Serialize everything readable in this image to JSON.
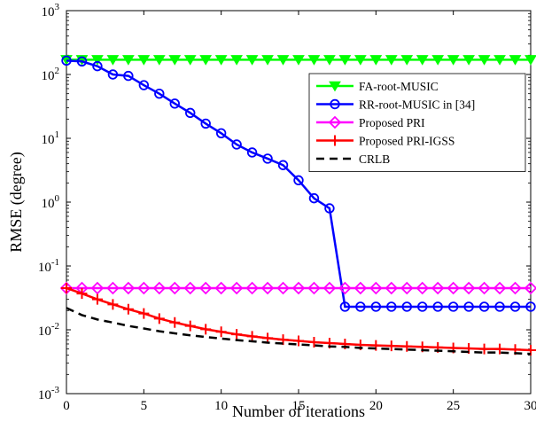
{
  "chart_data": {
    "type": "line",
    "xlabel": "Number of iterations",
    "ylabel": "RMSE (degree)",
    "xlim": [
      0,
      30
    ],
    "ylim": [
      0.001,
      1000
    ],
    "yscale": "log",
    "grid": false,
    "legend_position": "top-right",
    "x_ticks": [
      "0",
      "5",
      "10",
      "15",
      "20",
      "25",
      "30"
    ],
    "y_ticks": [
      {
        "value": 0.001,
        "base": "10",
        "exp": "-3"
      },
      {
        "value": 0.01,
        "base": "10",
        "exp": "-2"
      },
      {
        "value": 0.1,
        "base": "10",
        "exp": "-1"
      },
      {
        "value": 1,
        "base": "10",
        "exp": "0"
      },
      {
        "value": 10,
        "base": "10",
        "exp": "1"
      },
      {
        "value": 100,
        "base": "10",
        "exp": "2"
      },
      {
        "value": 1000,
        "base": "10",
        "exp": "3"
      }
    ],
    "series": [
      {
        "name": "FA-root-MUSIC",
        "color": "#00ff00",
        "marker": "triangle-down",
        "line_style": "solid",
        "x": [
          0,
          1,
          2,
          3,
          4,
          5,
          6,
          7,
          8,
          9,
          10,
          11,
          12,
          13,
          14,
          15,
          16,
          17,
          18,
          19,
          20,
          21,
          22,
          23,
          24,
          25,
          26,
          27,
          28,
          29,
          30
        ],
        "values": [
          170,
          170,
          170,
          170,
          170,
          170,
          170,
          170,
          170,
          170,
          170,
          170,
          170,
          170,
          170,
          170,
          170,
          170,
          170,
          170,
          170,
          170,
          170,
          170,
          170,
          170,
          170,
          170,
          170,
          170,
          170
        ]
      },
      {
        "name": "RR-root-MUSIC in [34]",
        "color": "#0000ff",
        "marker": "circle",
        "line_style": "solid",
        "x": [
          0,
          1,
          2,
          3,
          4,
          5,
          6,
          7,
          8,
          9,
          10,
          11,
          12,
          13,
          14,
          15,
          16,
          17,
          18,
          19,
          20,
          21,
          22,
          23,
          24,
          25,
          26,
          27,
          28,
          29,
          30
        ],
        "values": [
          165,
          160,
          135,
          100,
          95,
          68,
          50,
          35,
          25,
          17,
          12,
          8,
          6,
          4.8,
          3.8,
          2.2,
          1.15,
          0.8,
          0.023,
          0.023,
          0.023,
          0.023,
          0.023,
          0.023,
          0.023,
          0.023,
          0.023,
          0.023,
          0.023,
          0.023,
          0.023
        ]
      },
      {
        "name": "Proposed PRI",
        "color": "#ff00ff",
        "marker": "diamond",
        "line_style": "solid",
        "x": [
          0,
          1,
          2,
          3,
          4,
          5,
          6,
          7,
          8,
          9,
          10,
          11,
          12,
          13,
          14,
          15,
          16,
          17,
          18,
          19,
          20,
          21,
          22,
          23,
          24,
          25,
          26,
          27,
          28,
          29,
          30
        ],
        "values": [
          0.045,
          0.045,
          0.045,
          0.045,
          0.045,
          0.045,
          0.045,
          0.045,
          0.045,
          0.045,
          0.045,
          0.045,
          0.045,
          0.045,
          0.045,
          0.045,
          0.045,
          0.045,
          0.045,
          0.045,
          0.045,
          0.045,
          0.045,
          0.045,
          0.045,
          0.045,
          0.045,
          0.045,
          0.045,
          0.045,
          0.045
        ]
      },
      {
        "name": "Proposed PRI-IGSS",
        "color": "#ff0000",
        "marker": "plus",
        "line_style": "solid",
        "x": [
          0,
          1,
          2,
          3,
          4,
          5,
          6,
          7,
          8,
          9,
          10,
          11,
          12,
          13,
          14,
          15,
          16,
          17,
          18,
          19,
          20,
          21,
          22,
          23,
          24,
          25,
          26,
          27,
          28,
          29,
          30
        ],
        "values": [
          0.045,
          0.037,
          0.03,
          0.025,
          0.021,
          0.018,
          0.015,
          0.013,
          0.0115,
          0.0102,
          0.0093,
          0.0085,
          0.0079,
          0.0074,
          0.007,
          0.0067,
          0.0064,
          0.0062,
          0.006,
          0.0058,
          0.0057,
          0.0056,
          0.0055,
          0.0054,
          0.0053,
          0.0052,
          0.0051,
          0.005,
          0.005,
          0.0049,
          0.0048
        ]
      },
      {
        "name": "CRLB",
        "color": "#000000",
        "marker": "none",
        "line_style": "dashed",
        "x": [
          0,
          1,
          2,
          3,
          4,
          5,
          6,
          7,
          8,
          9,
          10,
          11,
          12,
          13,
          14,
          15,
          16,
          17,
          18,
          19,
          20,
          21,
          22,
          23,
          24,
          25,
          26,
          27,
          28,
          29,
          30
        ],
        "values": [
          0.022,
          0.017,
          0.0145,
          0.013,
          0.0115,
          0.0105,
          0.0095,
          0.0088,
          0.0082,
          0.0077,
          0.0073,
          0.0069,
          0.0066,
          0.0063,
          0.0061,
          0.0059,
          0.0057,
          0.0055,
          0.0054,
          0.0052,
          0.0051,
          0.005,
          0.0049,
          0.0048,
          0.0047,
          0.0046,
          0.0045,
          0.0044,
          0.0044,
          0.0043,
          0.0042
        ]
      }
    ]
  }
}
